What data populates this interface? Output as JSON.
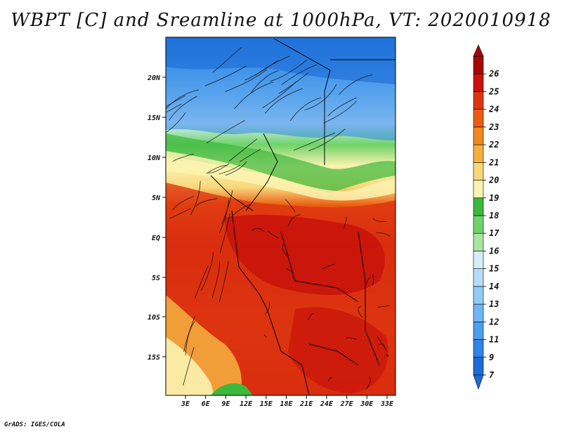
{
  "title": "WBPT [C] and Sreamline at 1000hPa, VT: 2020010918",
  "footer": "GrADS: IGES/COLA",
  "map": {
    "lat_labels": [
      "20N",
      "15N",
      "10N",
      "5N",
      "EQ",
      "5S",
      "10S",
      "15S"
    ],
    "lon_labels": [
      "3E",
      "6E",
      "9E",
      "12E",
      "15E",
      "18E",
      "21E",
      "24E",
      "27E",
      "30E",
      "33E"
    ]
  },
  "colorbar": {
    "levels": [
      "7",
      "9",
      "11",
      "12",
      "13",
      "14",
      "15",
      "16",
      "17",
      "18",
      "19",
      "20",
      "21",
      "22",
      "23",
      "24",
      "25",
      "26"
    ],
    "colors": [
      "#1d6bd6",
      "#2f86e6",
      "#4d9eee",
      "#6fb6f3",
      "#93cbf7",
      "#b6dcf9",
      "#d6edfb",
      "#a8e6a0",
      "#6fd36a",
      "#3cb83c",
      "#fbf3b0",
      "#f8d77b",
      "#f4b03f",
      "#f08a1d",
      "#ea5d12",
      "#dd3410",
      "#c8120c",
      "#a50808"
    ]
  }
}
